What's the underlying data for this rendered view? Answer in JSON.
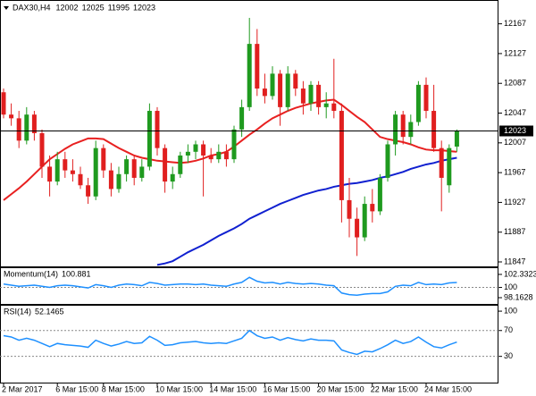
{
  "chart_data": [
    {
      "type": "candlestick",
      "title": "DAX30,H4",
      "categories": [
        "2 Mar 2017",
        null,
        null,
        null,
        null,
        null,
        null,
        "6 Mar 15:00",
        null,
        null,
        null,
        null,
        null,
        "8 Mar 15:00",
        null,
        null,
        null,
        null,
        null,
        null,
        "10 Mar 15:00",
        null,
        null,
        null,
        null,
        null,
        null,
        "14 Mar 15:00",
        null,
        null,
        null,
        null,
        null,
        null,
        "16 Mar 15:00",
        null,
        null,
        null,
        null,
        null,
        null,
        "20 Mar 15:00",
        null,
        null,
        null,
        null,
        null,
        null,
        "22 Mar 15:00",
        null,
        null,
        null,
        null,
        null,
        null,
        "24 Mar 15:00",
        null,
        null,
        null,
        null
      ],
      "open": [
        12075,
        12045,
        12040,
        12010,
        12045,
        12020,
        11975,
        11955,
        11985,
        11970,
        11965,
        11950,
        11935,
        12000,
        11970,
        11945,
        11965,
        11985,
        11960,
        11975,
        12050,
        12000,
        11955,
        11965,
        11990,
        11995,
        12005,
        11990,
        11985,
        11995,
        11985,
        12025,
        12055,
        12140,
        12080,
        12070,
        12100,
        12055,
        12100,
        12080,
        12060,
        12085,
        12055,
        12060,
        12050,
        11930,
        11905,
        11880,
        11925,
        11915,
        11960,
        12005,
        12045,
        12015,
        12035,
        12085,
        12050,
        12000,
        11950,
        12002
      ],
      "high": [
        12080,
        12060,
        12050,
        12055,
        12050,
        12025,
        11990,
        11995,
        11995,
        11985,
        11975,
        11960,
        12010,
        12005,
        11980,
        11975,
        11990,
        11990,
        11985,
        12060,
        12055,
        12005,
        11975,
        11995,
        12005,
        12010,
        12010,
        12000,
        12005,
        12005,
        12030,
        12065,
        12175,
        12160,
        12100,
        12110,
        12105,
        12110,
        12105,
        12090,
        12090,
        12090,
        12075,
        12120,
        12060,
        11960,
        11920,
        11935,
        11945,
        11965,
        12010,
        12050,
        12050,
        12045,
        12090,
        12095,
        12085,
        12010,
        12005,
        12025
      ],
      "low": [
        12040,
        12030,
        12000,
        12005,
        12010,
        11960,
        11935,
        11950,
        11960,
        11955,
        11945,
        11925,
        11930,
        11960,
        11935,
        11940,
        11955,
        11950,
        11955,
        11970,
        11990,
        11940,
        11945,
        11960,
        11980,
        11985,
        11935,
        11980,
        11980,
        11975,
        11980,
        12015,
        12050,
        12070,
        12060,
        12065,
        12030,
        12050,
        12070,
        12045,
        12050,
        12045,
        12040,
        12040,
        11900,
        11880,
        11855,
        11875,
        11900,
        11910,
        11955,
        11990,
        12005,
        12005,
        12030,
        12040,
        11995,
        11915,
        11940,
        11995
      ],
      "close": [
        12045,
        12040,
        12010,
        12045,
        12020,
        11975,
        11955,
        11985,
        11970,
        11965,
        11950,
        11935,
        12000,
        11970,
        11945,
        11965,
        11985,
        11960,
        11975,
        12050,
        12000,
        11955,
        11965,
        11990,
        11995,
        12005,
        11990,
        11985,
        11995,
        11985,
        12025,
        12055,
        12140,
        12080,
        12070,
        12100,
        12055,
        12100,
        12080,
        12060,
        12085,
        12055,
        12060,
        12050,
        11930,
        11905,
        11880,
        11925,
        11915,
        11960,
        12005,
        12045,
        12015,
        12035,
        12085,
        12050,
        12000,
        11960,
        12000,
        12023
      ],
      "up_color": "#1f9a1f",
      "down_color": "#e01f1f",
      "series": [
        {
          "color": "#e82020",
          "values": [
            11930,
            11938,
            11946,
            11955,
            11965,
            11975,
            11985,
            11992,
            11999,
            12005,
            12009,
            12013,
            12013,
            12012,
            12006,
            12000,
            11995,
            11990,
            11987,
            11985,
            11983,
            11982,
            11981,
            11980,
            11981,
            11983,
            11986,
            11990,
            11992,
            11995,
            12002,
            12010,
            12018,
            12025,
            12033,
            12040,
            12045,
            12050,
            12054,
            12057,
            12060,
            12062,
            12064,
            12065,
            12058,
            12050,
            12042,
            12035,
            12025,
            12015,
            12012,
            12010,
            12008,
            12005,
            12001,
            11998,
            11997,
            11997,
            11996,
            11995
          ]
        },
        {
          "color": "#1020d0",
          "values": [
            null,
            null,
            null,
            null,
            null,
            null,
            null,
            null,
            null,
            null,
            null,
            null,
            null,
            null,
            null,
            null,
            null,
            null,
            null,
            null,
            11843,
            11845,
            11848,
            11854,
            11860,
            11865,
            11870,
            11876,
            11882,
            11887,
            11892,
            11898,
            11905,
            11910,
            11915,
            11920,
            11925,
            11929,
            11933,
            11937,
            11940,
            11943,
            11945,
            11948,
            11950,
            11952,
            11953,
            11955,
            11957,
            11960,
            11962,
            11965,
            11968,
            11972,
            11975,
            11978,
            11980,
            11983,
            11985,
            11987
          ]
        }
      ],
      "last_price": 12023,
      "ylim": [
        11841,
        12199
      ],
      "yticks": [
        12167,
        12127,
        12087,
        12047,
        12007,
        11967,
        11927,
        11887,
        11847
      ]
    },
    {
      "type": "line",
      "title": "Momentum(14)",
      "color": "#1e90ff",
      "values": [
        100.6,
        100.4,
        100.2,
        100.3,
        100.4,
        100.2,
        100.0,
        100.3,
        100.4,
        100.3,
        100.1,
        99.9,
        100.5,
        100.3,
        100.0,
        100.4,
        100.6,
        100.5,
        100.3,
        100.9,
        100.7,
        100.4,
        100.5,
        100.6,
        100.6,
        100.5,
        100.6,
        100.4,
        100.3,
        100.2,
        100.6,
        100.9,
        101.8,
        101.1,
        100.8,
        100.9,
        100.6,
        100.9,
        100.7,
        100.6,
        100.7,
        100.6,
        100.4,
        100.3,
        99.0,
        98.7,
        98.6,
        98.8,
        98.9,
        98.9,
        99.2,
        100.2,
        100.4,
        100.3,
        100.9,
        100.5,
        100.6,
        100.5,
        100.8,
        100.881
      ],
      "levels": [
        100
      ],
      "ylim": [
        97.04,
        103.61
      ],
      "yticks": [
        102.3323,
        100,
        98.1628
      ]
    },
    {
      "type": "line",
      "title": "RSI(14)",
      "color": "#1e90ff",
      "values": [
        62,
        60,
        55,
        58,
        55,
        50,
        45,
        50,
        48,
        47,
        46,
        44,
        55,
        50,
        46,
        49,
        53,
        50,
        51,
        61,
        55,
        47,
        48,
        51,
        52,
        53,
        51,
        50,
        51,
        50,
        54,
        58,
        70,
        62,
        58,
        60,
        55,
        59,
        56,
        54,
        57,
        55,
        55,
        54,
        40,
        36,
        33,
        38,
        37,
        42,
        48,
        55,
        50,
        53,
        60,
        52,
        45,
        43,
        48,
        52.1465
      ],
      "levels": [
        70,
        30
      ],
      "ylim": [
        -10.6,
        109.8
      ],
      "yticks": [
        100,
        70,
        30
      ]
    }
  ]
}
